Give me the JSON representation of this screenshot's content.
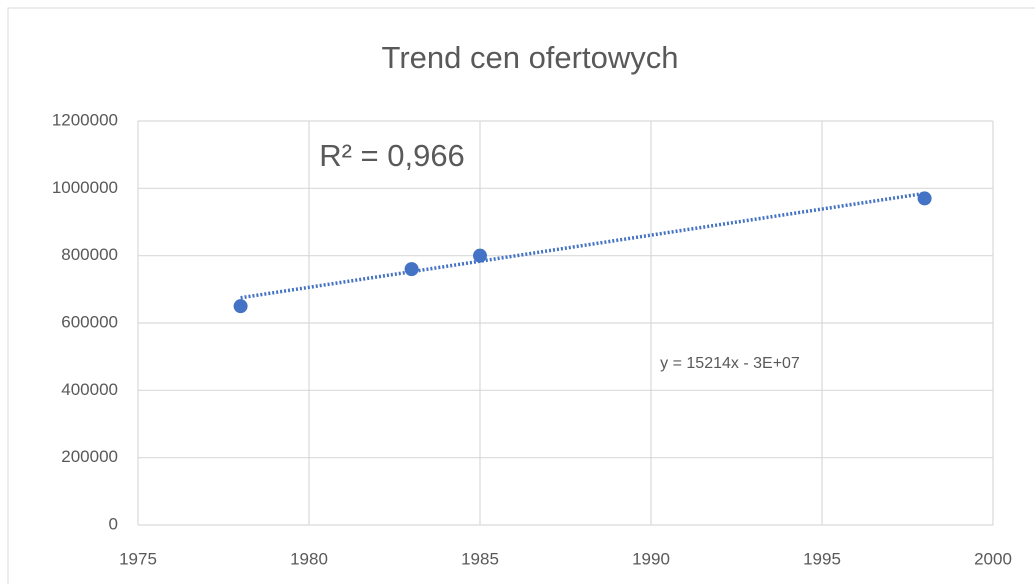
{
  "chart_data": {
    "type": "scatter",
    "title": "Trend cen ofertowych",
    "series": [
      {
        "color": "#4472c4",
        "x": [
          1978,
          1983,
          1985,
          1998
        ],
        "values": [
          650000,
          760000,
          800000,
          970000
        ]
      }
    ],
    "trendline": {
      "color": "#4472c4",
      "x": [
        1978,
        1998
      ],
      "values": [
        675000,
        985000
      ]
    },
    "annotations": [
      "R² = 0,966",
      "y = 15214x - 3E+07"
    ],
    "xlim": [
      1975,
      2000
    ],
    "xticks": [
      1975,
      1980,
      1985,
      1990,
      1995,
      2000
    ],
    "ylim": [
      0,
      1200000
    ],
    "yticks": [
      0,
      200000,
      400000,
      600000,
      800000,
      1000000,
      1200000
    ],
    "grid": true
  }
}
